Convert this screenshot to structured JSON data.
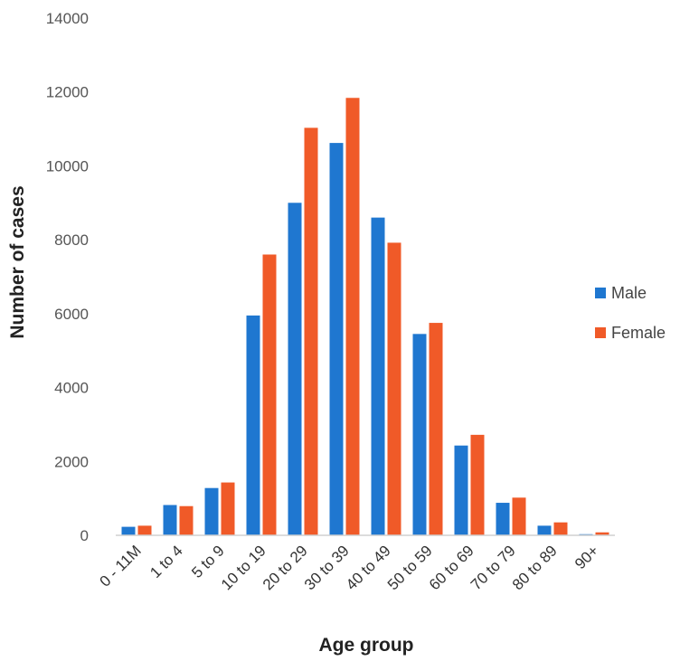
{
  "chart_data": {
    "type": "bar",
    "title": "",
    "xlabel": "Age group",
    "ylabel": "Number of cases",
    "ylim": [
      0,
      14000
    ],
    "yticks": [
      0,
      2000,
      4000,
      6000,
      8000,
      10000,
      12000,
      14000
    ],
    "grid": false,
    "legend_position": "right",
    "categories": [
      "0 - 11M",
      "1 to 4",
      "5 to 9",
      "10 to 19",
      "20 to 29",
      "30 to 39",
      "40 to 49",
      "50 to 59",
      "60 to 69",
      "70 to 79",
      "80 to 89",
      "90+"
    ],
    "series": [
      {
        "name": "Male",
        "color": "#1f77d0",
        "values": [
          230,
          820,
          1280,
          5950,
          9000,
          10620,
          8600,
          5450,
          2430,
          880,
          260,
          30
        ]
      },
      {
        "name": "Female",
        "color": "#f05a28",
        "values": [
          260,
          790,
          1430,
          7600,
          11030,
          11840,
          7920,
          5750,
          2720,
          1020,
          350,
          80
        ]
      }
    ]
  }
}
